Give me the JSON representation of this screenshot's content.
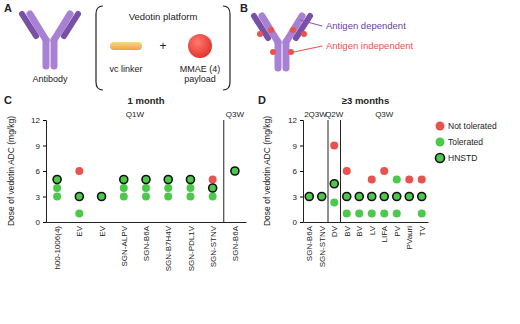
{
  "diagram": {
    "A": {
      "letter": "A",
      "antibody": "Antibody",
      "platform": "Vedotin platform",
      "plus": "+",
      "linker": "vc linker",
      "payload": [
        "MMAE (4)",
        "payload"
      ]
    },
    "B": {
      "letter": "B",
      "labels": [
        "Antigen dependent",
        "Antigen independent"
      ]
    }
  },
  "chart_data": [
    {
      "type": "scatter",
      "panel": "C",
      "title": "1 month",
      "y_label": "Dose of vedotin ADC (mg/kg)",
      "categories": [
        "h00-1006(4)",
        "EV",
        "EV",
        "SGN-ALPV",
        "SGN-B6A",
        "SGN-B7H4V",
        "SGN-PDL1V",
        "SGN-STNV",
        "SGN-B6A"
      ],
      "category_groups": [
        "Q1W",
        "Q1W",
        "Q1W",
        "Q1W",
        "Q1W",
        "Q1W",
        "Q1W",
        "Q1W",
        "Q3W"
      ],
      "ylim": [
        0,
        12
      ],
      "yticks": [
        0,
        3,
        6,
        9,
        12
      ],
      "series": [
        {
          "color": "#e8534f",
          "marker": "circle",
          "values": [
            null,
            6,
            null,
            null,
            null,
            null,
            null,
            5,
            null
          ]
        },
        {
          "color": "#4cc94c",
          "marker": "circle",
          "values": [
            [
              3,
              4
            ],
            [
              1
            ],
            null,
            [
              3,
              4
            ],
            [
              3,
              4
            ],
            [
              3,
              4
            ],
            [
              3,
              4
            ],
            [
              3
            ],
            null
          ]
        },
        {
          "color": "#4cc94c",
          "marker": "circle-outlined",
          "values": [
            5,
            3,
            3,
            5,
            5,
            5,
            5,
            4,
            6
          ]
        }
      ]
    },
    {
      "type": "scatter",
      "panel": "D",
      "title": "≥3 months",
      "y_label": "Dose of vedotin ADC (mg/kg)",
      "categories": [
        "SGN-B6A",
        "SGN-STNV",
        "DV",
        "BV",
        "BV",
        "LV",
        "LIFA",
        "PV",
        "PVauri",
        "TV"
      ],
      "category_groups": [
        "2Q3W",
        "2Q3W",
        "Q2W",
        "Q3W",
        "Q3W",
        "Q3W",
        "Q3W",
        "Q3W",
        "Q3W",
        "Q3W"
      ],
      "ylim": [
        0,
        12
      ],
      "yticks": [
        0,
        3,
        6,
        9,
        12
      ],
      "legend": "right",
      "series": [
        {
          "name": "Not tolerated",
          "color": "#e8534f",
          "marker": "circle",
          "values": [
            null,
            null,
            9,
            6,
            null,
            5,
            6,
            null,
            5,
            5
          ]
        },
        {
          "name": "Tolerated",
          "color": "#4cc94c",
          "marker": "circle",
          "values": [
            null,
            null,
            [
              2.3
            ],
            [
              1
            ],
            [
              1
            ],
            [
              1
            ],
            [
              1
            ],
            [
              1,
              5
            ],
            null,
            [
              1
            ]
          ]
        },
        {
          "name": "HNSTD",
          "color": "#4cc94c",
          "marker": "circle-outlined",
          "values": [
            3,
            3,
            4.5,
            3,
            3,
            3,
            3,
            3,
            3,
            3
          ]
        }
      ]
    }
  ]
}
